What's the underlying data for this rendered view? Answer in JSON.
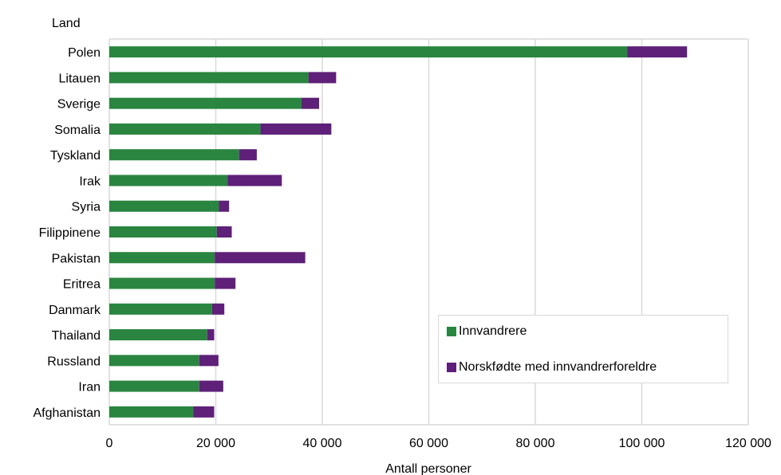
{
  "chart_data": {
    "type": "bar",
    "orientation": "horizontal",
    "stacked": true,
    "title": "",
    "ylabel": "Land",
    "xlabel": "Antall personer",
    "categories": [
      "Polen",
      "Litauen",
      "Sverige",
      "Somalia",
      "Tyskland",
      "Irak",
      "Syria",
      "Filippinene",
      "Pakistan",
      "Eritrea",
      "Danmark",
      "Thailand",
      "Russland",
      "Iran",
      "Afghanistan"
    ],
    "series": [
      {
        "name": "Innvandrere",
        "color": "#2a8540",
        "values": [
          97300,
          37400,
          36100,
          28400,
          24400,
          22200,
          20600,
          20200,
          19800,
          19800,
          19300,
          18400,
          16900,
          16900,
          15800
        ]
      },
      {
        "name": "Norskfødte med innvandrerforeldre",
        "color": "#5e2078",
        "values": [
          11200,
          5200,
          3300,
          13300,
          3300,
          10200,
          1900,
          2800,
          17000,
          3900,
          2300,
          1300,
          3600,
          4500,
          3900
        ]
      }
    ],
    "xlim": [
      0,
      120000
    ],
    "xticks": [
      0,
      20000,
      40000,
      60000,
      80000,
      100000,
      120000
    ],
    "xtick_labels": [
      "0",
      "20 000",
      "40 000",
      "60 000",
      "80 000",
      "100 000",
      "120 000"
    ],
    "grid": true,
    "legend": "bottom-right"
  }
}
